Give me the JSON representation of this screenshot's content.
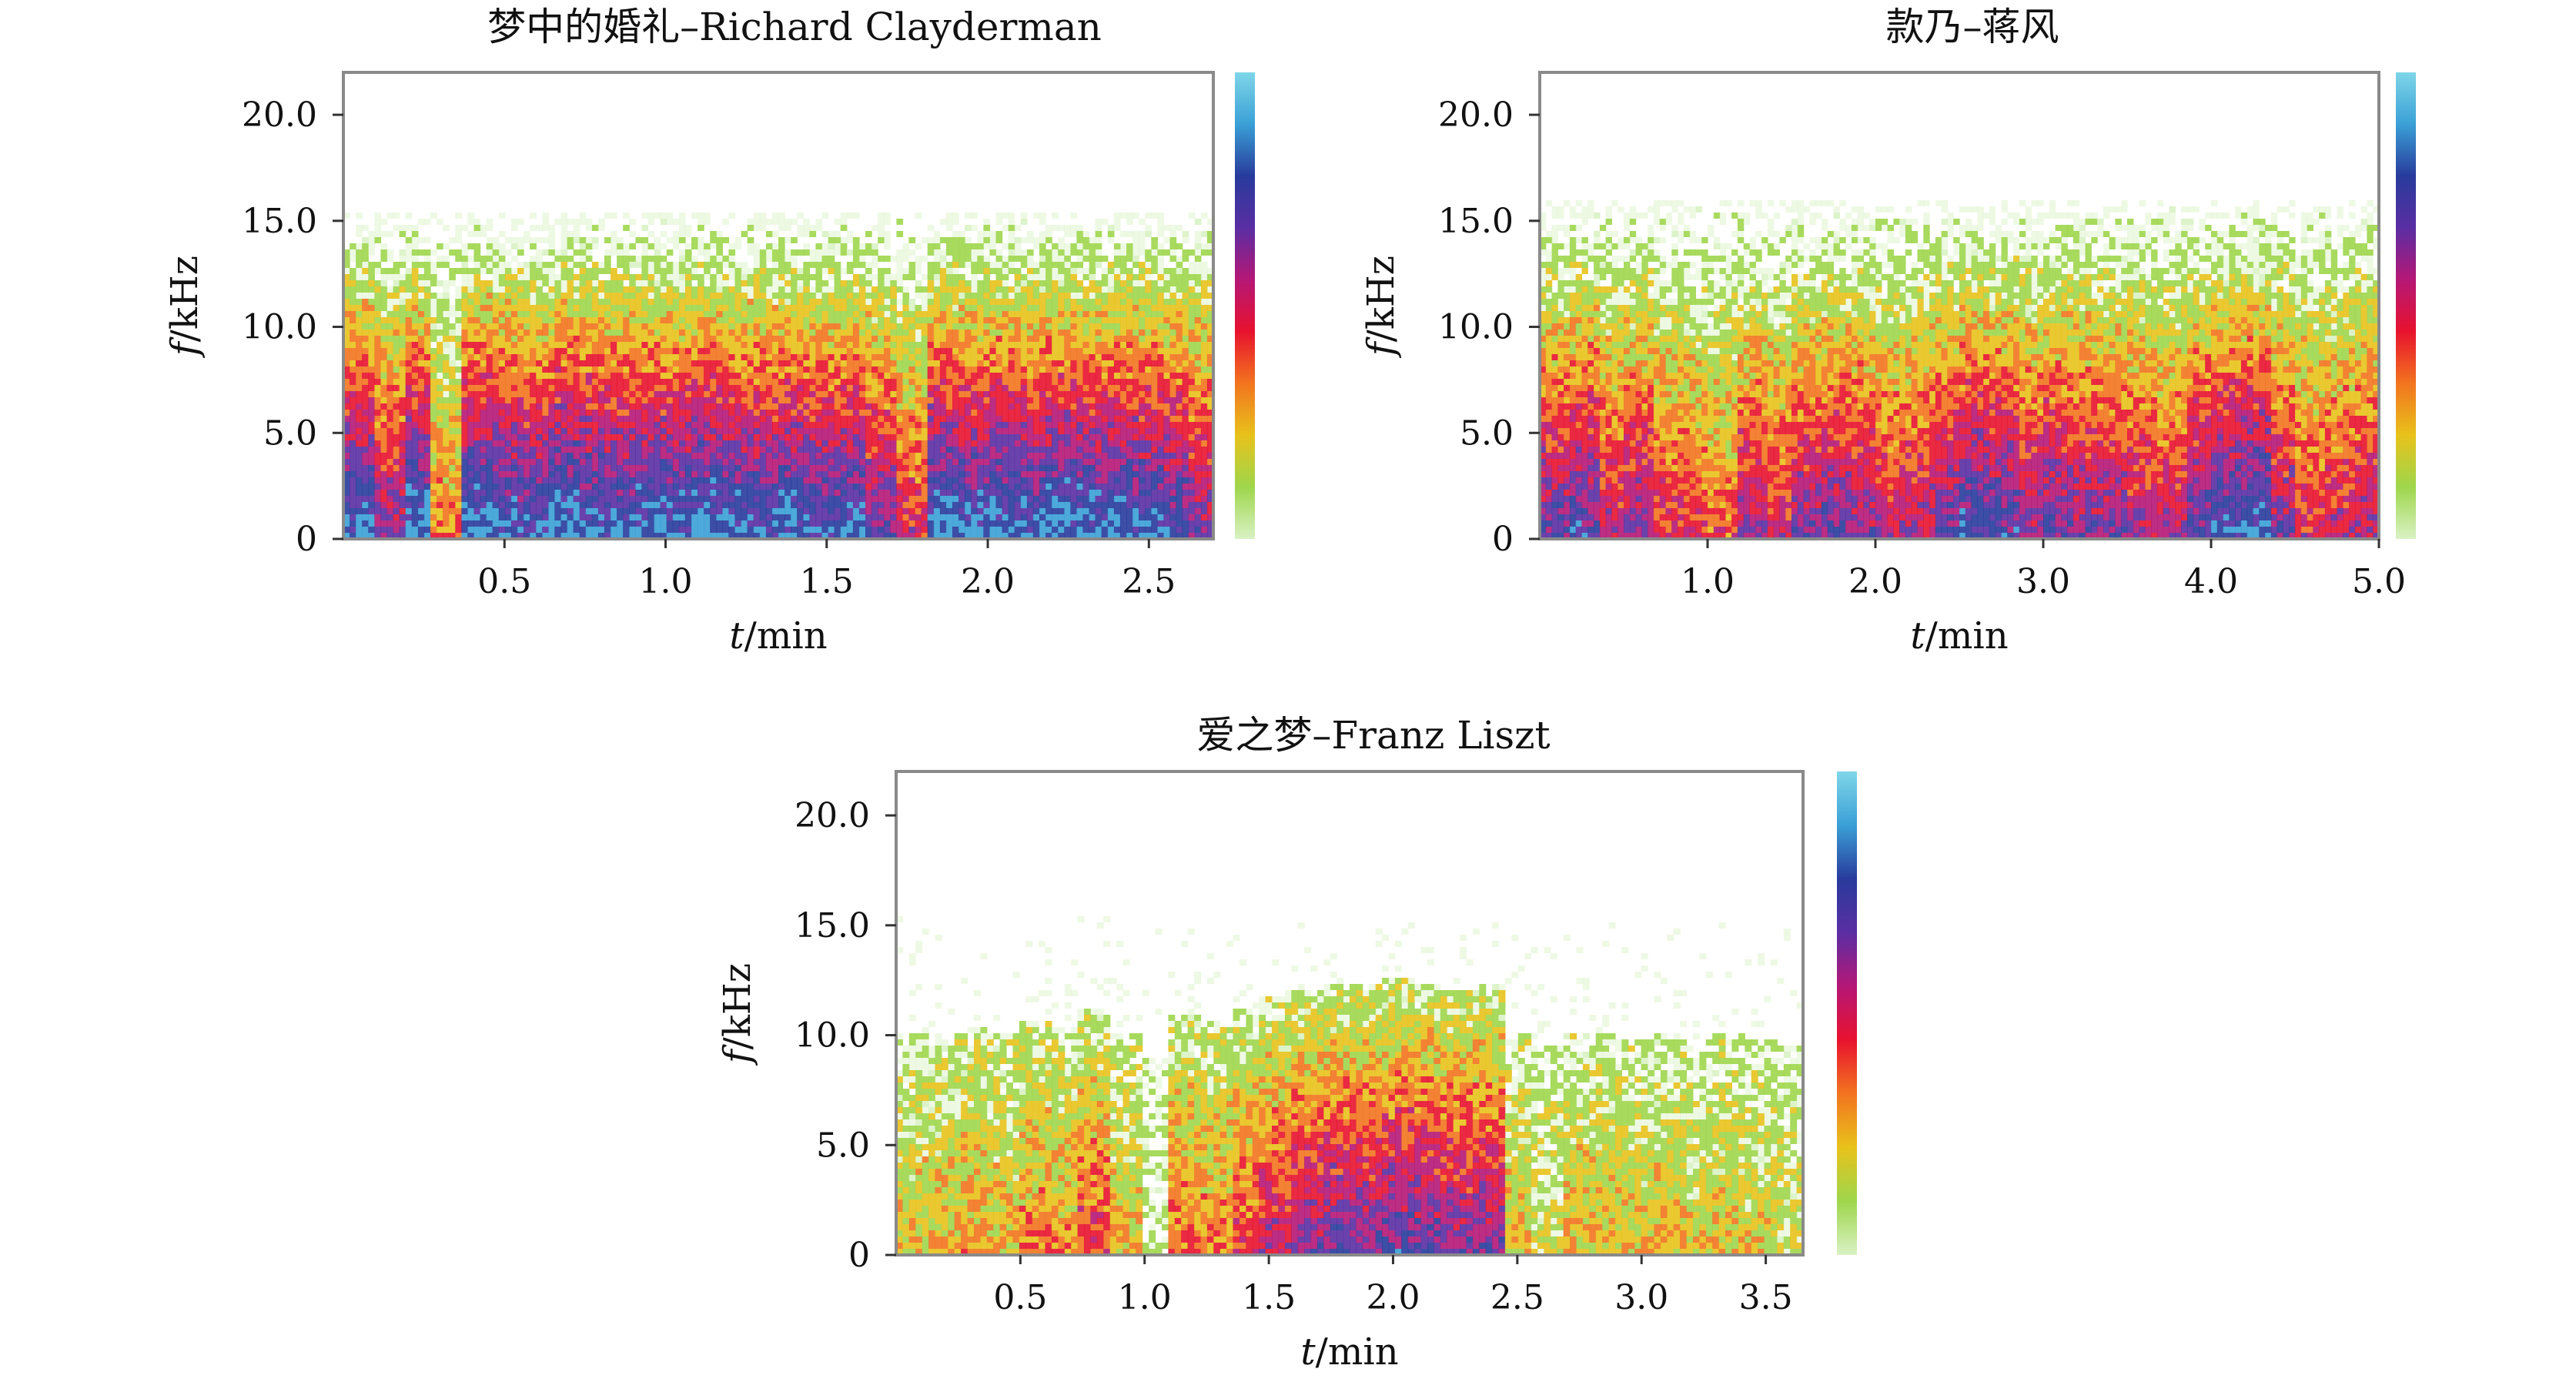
{
  "chart_data": [
    {
      "type": "heatmap",
      "title": "梦中的婚礼–Richard Clayderman",
      "xlabel_var": "t",
      "xlabel_unit": "/min",
      "ylabel_var": "f",
      "ylabel_unit": "/kHz",
      "xlim": [
        0,
        2.7
      ],
      "ylim": [
        0,
        22
      ],
      "xticks": [
        0.5,
        1.0,
        1.5,
        2.0,
        2.5
      ],
      "xtick_labels": [
        "0.5",
        "1.0",
        "1.5",
        "2.0",
        "2.5"
      ],
      "yticks": [
        0,
        5.0,
        10.0,
        15.0,
        20.0
      ],
      "ytick_labels": [
        "0",
        "5.0",
        "10.0",
        "15.0",
        "20.0"
      ],
      "duration_min": 2.7,
      "freq_ceiling_khz": 15.5,
      "colorbar": [
        "#d9f2c4",
        "#9ed64c",
        "#e8c21b",
        "#f2741f",
        "#e8122e",
        "#b51776",
        "#5a2ea3",
        "#283b9c",
        "#3aa0d6",
        "#7fd6e8"
      ],
      "energy_profile": [
        0.9,
        0.7,
        0.95,
        0.4,
        0.95,
        0.9,
        0.85,
        0.95,
        0.9,
        0.88,
        0.92,
        0.9,
        0.95,
        0.9,
        0.88,
        0.92,
        0.85,
        0.9,
        0.75,
        0.55,
        0.95,
        0.9,
        0.92,
        0.9,
        0.95,
        0.92,
        0.9,
        0.88,
        0.85,
        0.7
      ]
    },
    {
      "type": "heatmap",
      "title": "款乃–蒋风",
      "xlabel_var": "t",
      "xlabel_unit": "/min",
      "ylabel_var": "f",
      "ylabel_unit": "/kHz",
      "xlim": [
        0,
        5.0
      ],
      "ylim": [
        0,
        22
      ],
      "xticks": [
        1.0,
        2.0,
        3.0,
        4.0,
        5.0
      ],
      "xtick_labels": [
        "1.0",
        "2.0",
        "3.0",
        "4.0",
        "5.0"
      ],
      "yticks": [
        0,
        5.0,
        10.0,
        15.0,
        20.0
      ],
      "ytick_labels": [
        "0",
        "5.0",
        "10.0",
        "15.0",
        "20.0"
      ],
      "duration_min": 5.0,
      "freq_ceiling_khz": 16.0,
      "colorbar": [
        "#d9f2c4",
        "#9ed64c",
        "#e8c21b",
        "#f2741f",
        "#e8122e",
        "#b51776",
        "#5a2ea3",
        "#283b9c",
        "#3aa0d6",
        "#7fd6e8"
      ],
      "energy_profile": [
        0.75,
        0.8,
        0.6,
        0.7,
        0.55,
        0.5,
        0.45,
        0.65,
        0.55,
        0.7,
        0.75,
        0.7,
        0.6,
        0.65,
        0.75,
        0.85,
        0.8,
        0.7,
        0.75,
        0.7,
        0.72,
        0.65,
        0.6,
        0.78,
        0.85,
        0.9,
        0.7,
        0.55,
        0.6,
        0.65
      ]
    },
    {
      "type": "heatmap",
      "title": "爱之梦–Franz Liszt",
      "xlabel_var": "t",
      "xlabel_unit": "/min",
      "ylabel_var": "f",
      "ylabel_unit": "/kHz",
      "xlim": [
        0,
        3.65
      ],
      "ylim": [
        0,
        22
      ],
      "xticks": [
        0.5,
        1.0,
        1.5,
        2.0,
        2.5,
        3.0,
        3.5
      ],
      "xtick_labels": [
        "0.5",
        "1.0",
        "1.5",
        "2.0",
        "2.5",
        "3.0",
        "3.5"
      ],
      "yticks": [
        0,
        5.0,
        10.0,
        15.0,
        20.0
      ],
      "ytick_labels": [
        "0",
        "5.0",
        "10.0",
        "15.0",
        "20.0"
      ],
      "duration_min": 3.65,
      "freq_ceiling_khz": 15.5,
      "colorbar": [
        "#d9f2c4",
        "#9ed64c",
        "#e8c21b",
        "#f2741f",
        "#e8122e",
        "#b51776",
        "#5a2ea3",
        "#283b9c",
        "#3aa0d6",
        "#7fd6e8"
      ],
      "energy_profile": [
        0.3,
        0.32,
        0.35,
        0.3,
        0.4,
        0.38,
        0.5,
        0.3,
        0.1,
        0.45,
        0.4,
        0.5,
        0.6,
        0.7,
        0.75,
        0.72,
        0.78,
        0.75,
        0.7,
        0.72,
        0.3,
        0.2,
        0.32,
        0.3,
        0.28,
        0.3,
        0.25,
        0.3,
        0.25,
        0.2
      ]
    }
  ]
}
